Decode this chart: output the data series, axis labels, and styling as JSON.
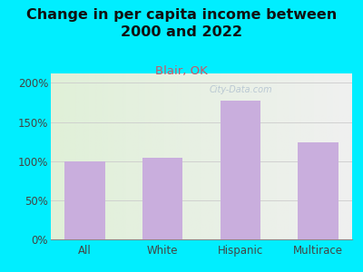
{
  "title": "Change in per capita income between\n2000 and 2022",
  "subtitle": "Blair, OK",
  "categories": [
    "All",
    "White",
    "Hispanic",
    "Multirace"
  ],
  "values": [
    100,
    104,
    177,
    124
  ],
  "bar_color": "#c9aedd",
  "title_fontsize": 11.5,
  "subtitle_fontsize": 9.5,
  "subtitle_color": "#cc5566",
  "title_color": "#111111",
  "bg_color": "#00eeff",
  "plot_bg_gradient_left": "#e0f0d8",
  "plot_bg_gradient_right": "#f0f0f0",
  "yticks": [
    0,
    50,
    100,
    150,
    200
  ],
  "ylim": [
    0,
    212
  ],
  "watermark": "City-Data.com",
  "watermark_color": "#aabbcc",
  "grid_color": "#cccccc"
}
